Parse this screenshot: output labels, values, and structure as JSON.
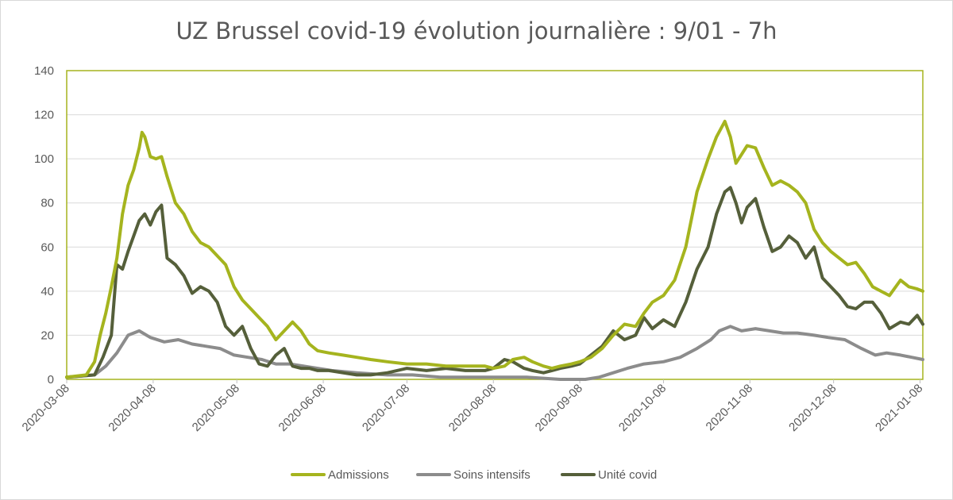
{
  "chart_data": {
    "type": "line",
    "title": "UZ Brussel covid-19 évolution journalière : 9/01 - 7h",
    "xlabel": "",
    "ylabel": "",
    "ylim": [
      0,
      140
    ],
    "yticks": [
      "0",
      "20",
      "40",
      "60",
      "80",
      "100",
      "120",
      "140"
    ],
    "xticks": [
      "2020-03-08",
      "2020-04-08",
      "2020-05-08",
      "2020-06-08",
      "2020-07-08",
      "2020-08-08",
      "2020-09-08",
      "2020-10-08",
      "2020-11-08",
      "2020-12-08",
      "2021-01-08"
    ],
    "xrange": [
      "2020-03-08",
      "2021-01-09"
    ],
    "grid": true,
    "legend_position": "bottom",
    "series": [
      {
        "name": "Admissions",
        "color": "#a5b41e",
        "x": [
          "2020-03-08",
          "2020-03-15",
          "2020-03-18",
          "2020-03-20",
          "2020-03-22",
          "2020-03-24",
          "2020-03-26",
          "2020-03-28",
          "2020-03-30",
          "2020-04-01",
          "2020-04-03",
          "2020-04-04",
          "2020-04-05",
          "2020-04-07",
          "2020-04-09",
          "2020-04-11",
          "2020-04-13",
          "2020-04-16",
          "2020-04-19",
          "2020-04-22",
          "2020-04-25",
          "2020-04-28",
          "2020-05-01",
          "2020-05-04",
          "2020-05-07",
          "2020-05-10",
          "2020-05-13",
          "2020-05-16",
          "2020-05-19",
          "2020-05-22",
          "2020-05-25",
          "2020-05-28",
          "2020-05-31",
          "2020-06-03",
          "2020-06-06",
          "2020-06-10",
          "2020-06-15",
          "2020-06-20",
          "2020-06-25",
          "2020-07-01",
          "2020-07-08",
          "2020-07-15",
          "2020-07-22",
          "2020-07-29",
          "2020-08-05",
          "2020-08-08",
          "2020-08-12",
          "2020-08-15",
          "2020-08-19",
          "2020-08-22",
          "2020-08-26",
          "2020-08-29",
          "2020-09-01",
          "2020-09-05",
          "2020-09-08",
          "2020-09-12",
          "2020-09-16",
          "2020-09-20",
          "2020-09-24",
          "2020-09-28",
          "2020-10-01",
          "2020-10-04",
          "2020-10-08",
          "2020-10-12",
          "2020-10-16",
          "2020-10-20",
          "2020-10-24",
          "2020-10-27",
          "2020-10-30",
          "2020-11-01",
          "2020-11-03",
          "2020-11-05",
          "2020-11-07",
          "2020-11-10",
          "2020-11-13",
          "2020-11-16",
          "2020-11-19",
          "2020-11-22",
          "2020-11-25",
          "2020-11-28",
          "2020-12-01",
          "2020-12-04",
          "2020-12-07",
          "2020-12-10",
          "2020-12-13",
          "2020-12-16",
          "2020-12-19",
          "2020-12-22",
          "2020-12-25",
          "2020-12-28",
          "2021-01-01",
          "2021-01-04",
          "2021-01-07",
          "2021-01-09"
        ],
        "values": [
          1,
          2,
          8,
          20,
          30,
          42,
          55,
          75,
          88,
          95,
          105,
          112,
          110,
          101,
          100,
          101,
          92,
          80,
          75,
          67,
          62,
          60,
          56,
          52,
          42,
          36,
          32,
          28,
          24,
          18,
          22,
          26,
          22,
          16,
          13,
          12,
          11,
          10,
          9,
          8,
          7,
          7,
          6,
          6,
          6,
          5,
          6,
          9,
          10,
          8,
          6,
          5,
          6,
          7,
          8,
          10,
          14,
          20,
          25,
          24,
          30,
          35,
          38,
          45,
          60,
          85,
          100,
          110,
          117,
          110,
          98,
          102,
          106,
          105,
          96,
          88,
          90,
          88,
          85,
          80,
          68,
          62,
          58,
          55,
          52,
          53,
          48,
          42,
          40,
          38,
          45,
          42,
          41,
          40
        ]
      },
      {
        "name": "Soins intensifs",
        "color": "#8c8c8c",
        "x": [
          "2020-03-08",
          "2020-03-18",
          "2020-03-22",
          "2020-03-26",
          "2020-03-30",
          "2020-04-03",
          "2020-04-07",
          "2020-04-12",
          "2020-04-17",
          "2020-04-22",
          "2020-04-27",
          "2020-05-02",
          "2020-05-07",
          "2020-05-12",
          "2020-05-17",
          "2020-05-22",
          "2020-05-27",
          "2020-06-01",
          "2020-06-06",
          "2020-06-11",
          "2020-06-20",
          "2020-07-01",
          "2020-07-10",
          "2020-07-20",
          "2020-08-01",
          "2020-08-10",
          "2020-08-20",
          "2020-09-01",
          "2020-09-10",
          "2020-09-15",
          "2020-09-20",
          "2020-09-25",
          "2020-10-01",
          "2020-10-08",
          "2020-10-14",
          "2020-10-20",
          "2020-10-25",
          "2020-10-28",
          "2020-11-01",
          "2020-11-05",
          "2020-11-10",
          "2020-11-15",
          "2020-11-20",
          "2020-11-25",
          "2020-12-01",
          "2020-12-06",
          "2020-12-12",
          "2020-12-18",
          "2020-12-23",
          "2020-12-27",
          "2021-01-01",
          "2021-01-05",
          "2021-01-09"
        ],
        "values": [
          1,
          2,
          6,
          12,
          20,
          22,
          19,
          17,
          18,
          16,
          15,
          14,
          11,
          10,
          9,
          7,
          7,
          6,
          5,
          4,
          3,
          2,
          2,
          1,
          1,
          1,
          1,
          0,
          0,
          1,
          3,
          5,
          7,
          8,
          10,
          14,
          18,
          22,
          24,
          22,
          23,
          22,
          21,
          21,
          20,
          19,
          18,
          14,
          11,
          12,
          11,
          10,
          9
        ]
      },
      {
        "name": "Unité covid",
        "color": "#555f3a",
        "x": [
          "2020-03-08",
          "2020-03-18",
          "2020-03-21",
          "2020-03-24",
          "2020-03-26",
          "2020-03-28",
          "2020-03-30",
          "2020-04-01",
          "2020-04-03",
          "2020-04-05",
          "2020-04-07",
          "2020-04-09",
          "2020-04-11",
          "2020-04-13",
          "2020-04-16",
          "2020-04-19",
          "2020-04-22",
          "2020-04-25",
          "2020-04-28",
          "2020-05-01",
          "2020-05-04",
          "2020-05-07",
          "2020-05-10",
          "2020-05-13",
          "2020-05-16",
          "2020-05-19",
          "2020-05-22",
          "2020-05-25",
          "2020-05-28",
          "2020-05-31",
          "2020-06-03",
          "2020-06-06",
          "2020-06-10",
          "2020-06-15",
          "2020-06-20",
          "2020-06-25",
          "2020-07-01",
          "2020-07-08",
          "2020-07-15",
          "2020-07-22",
          "2020-07-29",
          "2020-08-05",
          "2020-08-08",
          "2020-08-12",
          "2020-08-15",
          "2020-08-19",
          "2020-08-22",
          "2020-08-26",
          "2020-08-29",
          "2020-09-01",
          "2020-09-05",
          "2020-09-08",
          "2020-09-12",
          "2020-09-16",
          "2020-09-20",
          "2020-09-24",
          "2020-09-28",
          "2020-10-01",
          "2020-10-04",
          "2020-10-08",
          "2020-10-12",
          "2020-10-16",
          "2020-10-20",
          "2020-10-24",
          "2020-10-27",
          "2020-10-30",
          "2020-11-01",
          "2020-11-03",
          "2020-11-05",
          "2020-11-07",
          "2020-11-10",
          "2020-11-13",
          "2020-11-16",
          "2020-11-19",
          "2020-11-22",
          "2020-11-25",
          "2020-11-28",
          "2020-12-01",
          "2020-12-04",
          "2020-12-07",
          "2020-12-10",
          "2020-12-13",
          "2020-12-16",
          "2020-12-19",
          "2020-12-22",
          "2020-12-25",
          "2020-12-28",
          "2021-01-01",
          "2021-01-04",
          "2021-01-07",
          "2021-01-09"
        ],
        "values": [
          1,
          2,
          10,
          20,
          52,
          50,
          58,
          65,
          72,
          75,
          70,
          76,
          79,
          55,
          52,
          47,
          39,
          42,
          40,
          35,
          24,
          20,
          24,
          14,
          7,
          6,
          11,
          14,
          6,
          5,
          5,
          4,
          4,
          3,
          2,
          2,
          3,
          5,
          4,
          5,
          4,
          4,
          5,
          9,
          8,
          5,
          4,
          3,
          4,
          5,
          6,
          7,
          11,
          15,
          22,
          18,
          20,
          28,
          23,
          27,
          24,
          35,
          50,
          60,
          75,
          85,
          87,
          80,
          71,
          78,
          82,
          69,
          58,
          60,
          65,
          62,
          55,
          60,
          46,
          42,
          38,
          33,
          32,
          35,
          35,
          30,
          23,
          26,
          25,
          29,
          25
        ]
      }
    ]
  }
}
